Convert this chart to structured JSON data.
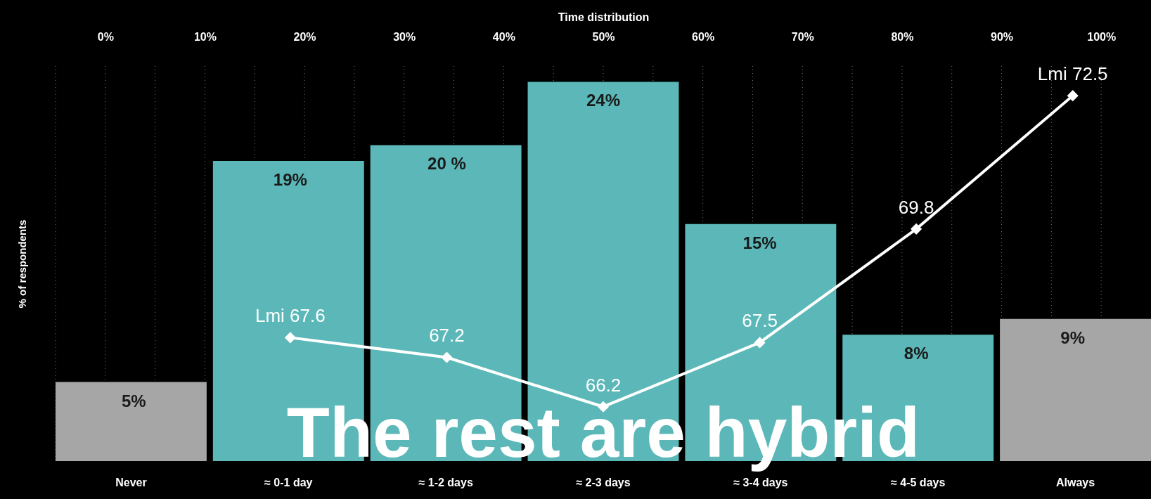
{
  "chart_data": {
    "type": "bar",
    "x2label": "Time distribution",
    "ylabel": "% of respondents",
    "categories": [
      "Never",
      "≈ 0-1 day",
      "≈ 1-2 days",
      "≈ 2-3 days",
      "≈ 3-4 days",
      "≈ 4-5 days",
      "Always"
    ],
    "series": [
      {
        "colors": [
          "#a6a6a6",
          "#5cb8b8",
          "#5cb8b8",
          "#5cb8b8",
          "#5cb8b8",
          "#5cb8b8",
          "#a6a6a6"
        ],
        "values": [
          5,
          19,
          20,
          24,
          15,
          8,
          9
        ],
        "value_labels": [
          "5%",
          "19%",
          "20 %",
          "24%",
          "15%",
          "8%",
          "9%"
        ]
      },
      {
        "type": "line",
        "axis": "y2",
        "color": "#ffffff",
        "values": [
          null,
          67.6,
          67.2,
          66.2,
          67.5,
          69.8,
          72.5
        ],
        "value_labels": [
          null,
          "Lmi 67.6",
          "67.2",
          "66.2",
          "67.5",
          "69.8",
          "Lmi 72.5"
        ]
      }
    ],
    "ylim": [
      0,
      25
    ],
    "y2lim": [
      65.1,
      73.1
    ],
    "x2lim": [
      -5,
      105
    ],
    "x2ticks": [
      {
        "value": -5,
        "label": null
      },
      {
        "value": 0,
        "label": "0%"
      },
      {
        "value": 5,
        "label": null
      },
      {
        "value": 10,
        "label": "10%"
      },
      {
        "value": 15,
        "label": null
      },
      {
        "value": 20,
        "label": "20%"
      },
      {
        "value": 25,
        "label": null
      },
      {
        "value": 30,
        "label": "30%"
      },
      {
        "value": 35,
        "label": null
      },
      {
        "value": 40,
        "label": "40%"
      },
      {
        "value": 45,
        "label": null
      },
      {
        "value": 50,
        "label": "50%"
      },
      {
        "value": 55,
        "label": null
      },
      {
        "value": 60,
        "label": "60%"
      },
      {
        "value": 65,
        "label": null
      },
      {
        "value": 70,
        "label": "70%"
      },
      {
        "value": 75,
        "label": null
      },
      {
        "value": 80,
        "label": "80%"
      },
      {
        "value": 85,
        "label": null
      },
      {
        "value": 90,
        "label": "90%"
      },
      {
        "value": 95,
        "label": null
      },
      {
        "value": 100,
        "label": "100%"
      }
    ],
    "grid": "x",
    "marker": "diamond",
    "tick_labels": "x",
    "annotations": [
      "The rest are hybrid"
    ]
  }
}
